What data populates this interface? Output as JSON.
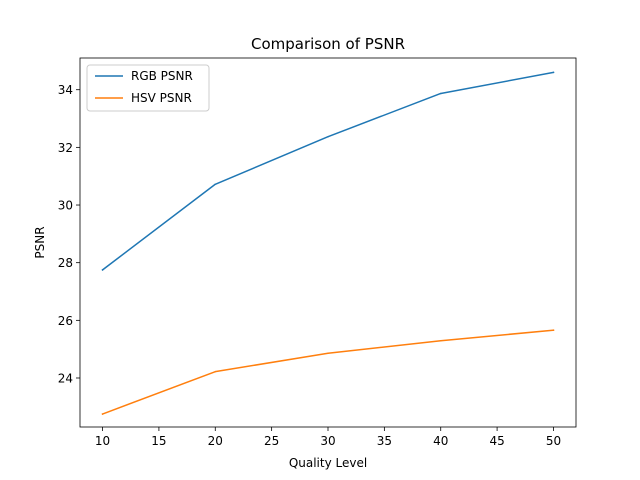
{
  "chart_data": {
    "type": "line",
    "title": "Comparison of PSNR",
    "xlabel": "Quality Level",
    "ylabel": "PSNR",
    "x": [
      10,
      20,
      30,
      40,
      50
    ],
    "xlim": [
      8,
      52
    ],
    "ylim": [
      22.3,
      35.1
    ],
    "xticks": [
      10,
      15,
      20,
      25,
      30,
      35,
      40,
      45,
      50
    ],
    "yticks": [
      24,
      26,
      28,
      30,
      32,
      34
    ],
    "grid": false,
    "legend_position": "upper-left",
    "series": [
      {
        "name": "RGB PSNR",
        "color": "#1f77b4",
        "values": [
          27.75,
          30.72,
          32.37,
          33.87,
          34.6
        ]
      },
      {
        "name": "HSV PSNR",
        "color": "#ff7f0e",
        "values": [
          22.75,
          24.22,
          24.86,
          25.29,
          25.66
        ]
      }
    ]
  }
}
